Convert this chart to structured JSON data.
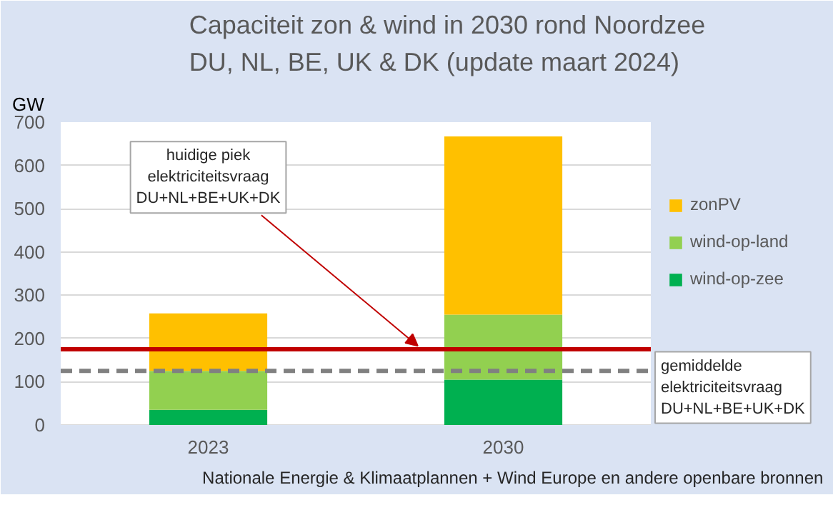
{
  "chart_data": {
    "type": "bar",
    "title": "Capaciteit zon & wind in 2030 rond Noordzee\nDU, NL, BE, UK & DK   (update maart 2024)",
    "ylabel": "GW",
    "categories": [
      "2023",
      "2030"
    ],
    "stacked": true,
    "series": [
      {
        "name": "wind-op-zee",
        "color": "#00b050",
        "values": [
          35,
          105
        ]
      },
      {
        "name": "wind-op-land",
        "color": "#92d050",
        "values": [
          90,
          150
        ]
      },
      {
        "name": "zonPV",
        "color": "#ffc000",
        "values": [
          133,
          412
        ]
      }
    ],
    "ylim": [
      0,
      700
    ],
    "yticks": [
      0,
      100,
      200,
      300,
      400,
      500,
      600,
      700
    ],
    "grid": "y",
    "legend": "right",
    "ref_lines": [
      {
        "axis": "y",
        "value": 175,
        "label": "huidige piek\nelektriciteitsvraag\nDU+NL+BE+UK+DK",
        "color": "#c00000",
        "line_style": "solid"
      },
      {
        "axis": "y",
        "value": 125,
        "label": "gemiddelde\nelektriciteitsvraag\nDU+NL+BE+UK+DK",
        "color": "#808080",
        "line_style": "dashed"
      }
    ],
    "annotations": [
      "Nationale Energie & Klimaatplannen + Wind Europe en andere  openbare bronnen"
    ]
  }
}
